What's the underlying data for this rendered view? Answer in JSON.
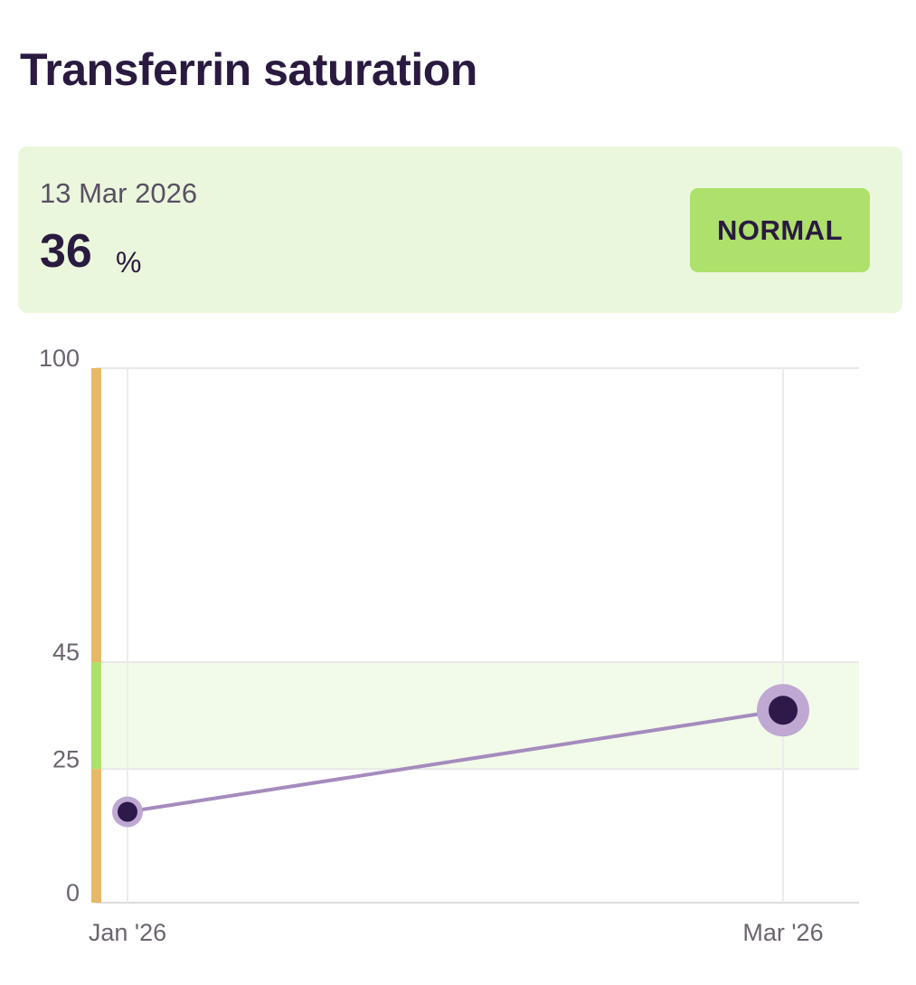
{
  "title": "Transferrin saturation",
  "summary": {
    "date": "13 Mar 2026",
    "value": "36",
    "unit": "%",
    "status": "NORMAL"
  },
  "colors": {
    "title": "#2a1a40",
    "card_bg": "#ebf7dc",
    "badge_bg": "#aee06c",
    "range_normal": "#aee06c",
    "range_abnormal": "#e8b86a",
    "normal_band": "#f2fae9",
    "line": "#a58bbd",
    "point": "#2e1a4a",
    "point_halo": "#bfa8d2"
  },
  "chart_data": {
    "type": "line",
    "title": "",
    "xlabel": "",
    "ylabel": "",
    "ylim": [
      0,
      100
    ],
    "y_ticks": [
      "0",
      "25",
      "45",
      "100"
    ],
    "x_ticks": [
      "Jan '26",
      "Mar '26"
    ],
    "normal_range": [
      25,
      45
    ],
    "series": [
      {
        "points": [
          {
            "x": "Jan '26",
            "y": 17
          },
          {
            "x": "13 Mar 2026",
            "y": 36
          }
        ]
      }
    ],
    "grid": true,
    "legend": "none"
  }
}
